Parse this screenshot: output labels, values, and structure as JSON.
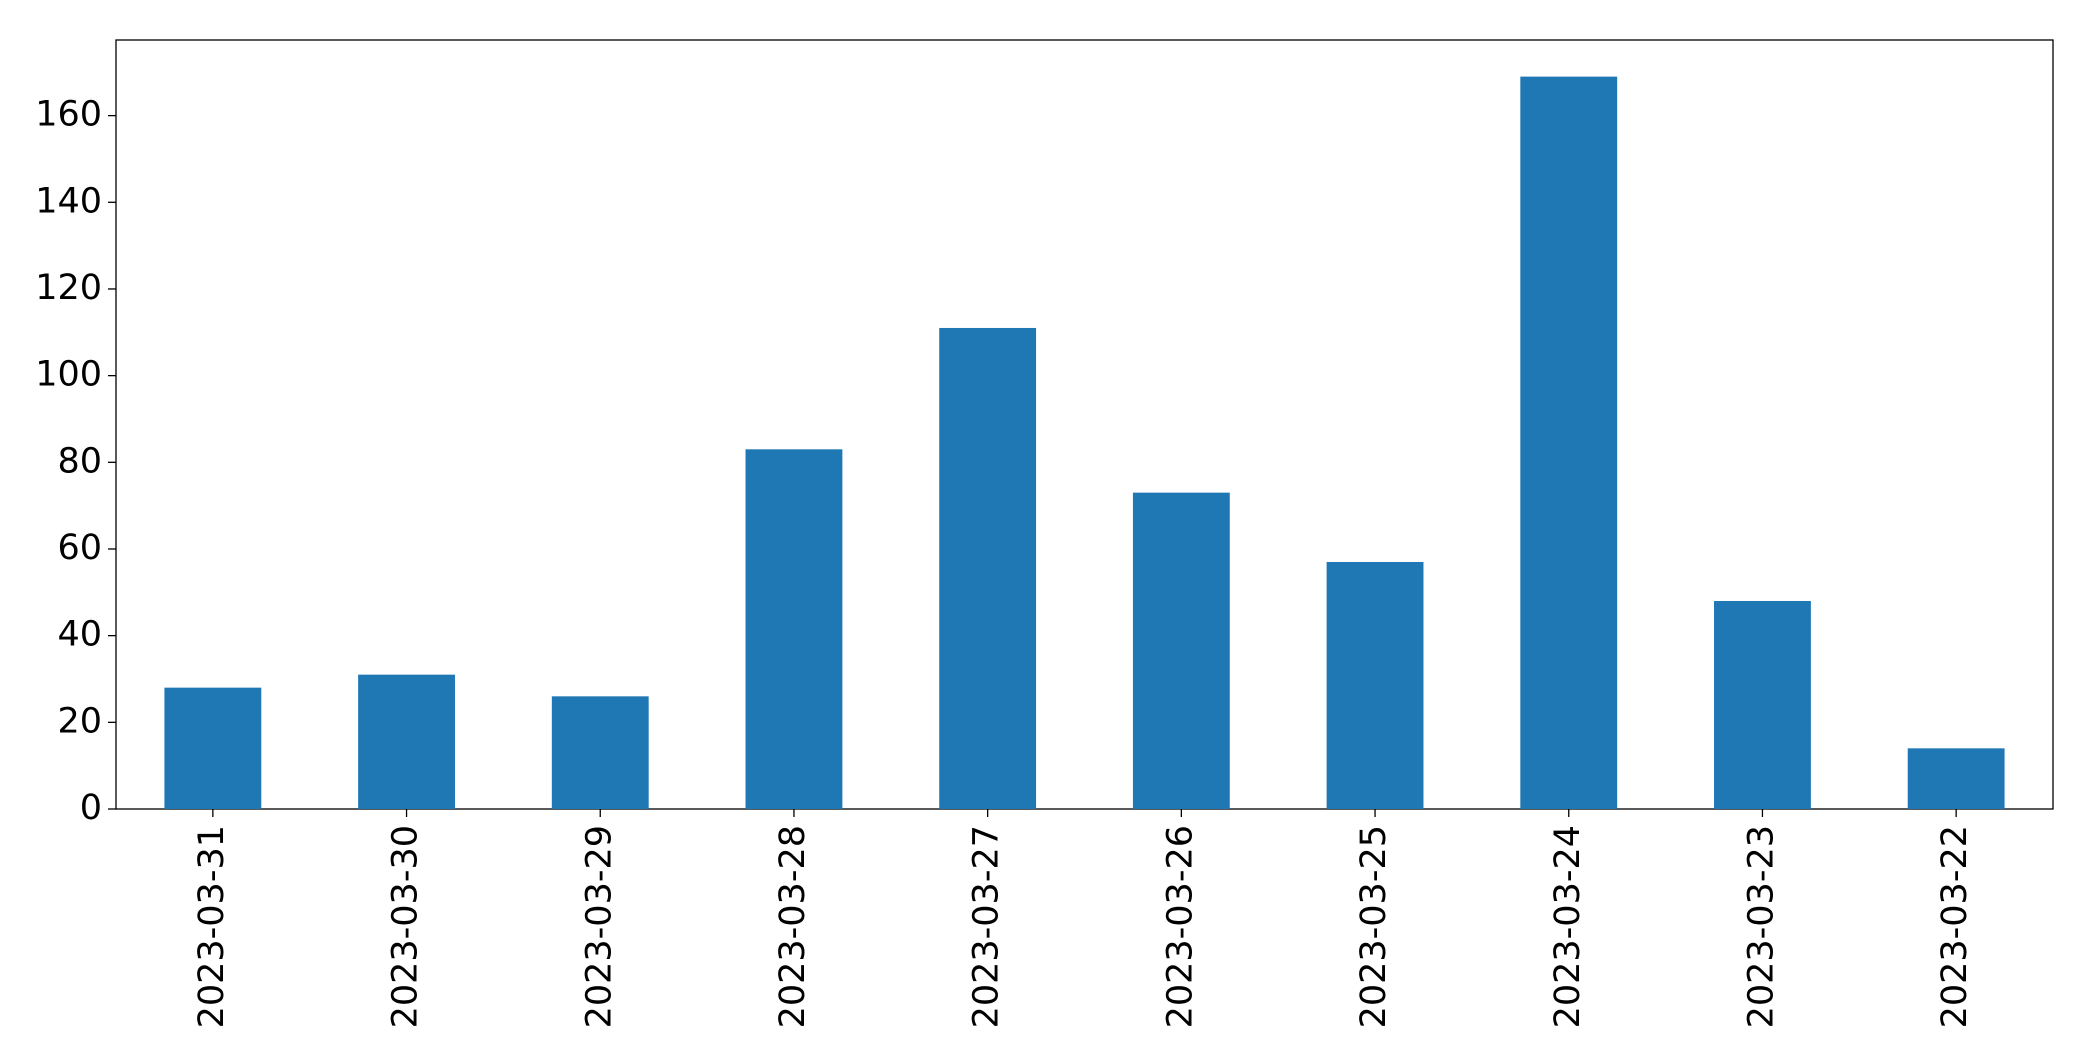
{
  "chart_data": {
    "type": "bar",
    "categories": [
      "2023-03-31",
      "2023-03-30",
      "2023-03-29",
      "2023-03-28",
      "2023-03-27",
      "2023-03-26",
      "2023-03-25",
      "2023-03-24",
      "2023-03-23",
      "2023-03-22"
    ],
    "values": [
      28,
      31,
      26,
      83,
      111,
      73,
      57,
      169,
      48,
      14
    ],
    "color": "#1f77b4",
    "ylim": [
      0,
      177.45
    ],
    "yticks": [
      0,
      20,
      40,
      60,
      80,
      100,
      120,
      140,
      160
    ],
    "grid": false
  }
}
